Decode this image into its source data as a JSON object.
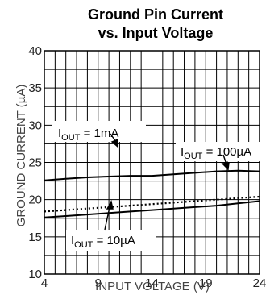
{
  "chart_data": {
    "type": "line",
    "title": "Ground Pin Current",
    "subtitle": "vs. Input Voltage",
    "xlabel": "INPUT  VOLTAGE (V)",
    "ylabel": "GROUND CURRENT (µA)",
    "xlim": [
      4,
      24
    ],
    "ylim": [
      10,
      40
    ],
    "xticks": [
      4,
      9,
      14,
      19,
      24
    ],
    "yticks": [
      10,
      15,
      20,
      25,
      30,
      35,
      40
    ],
    "grid": true,
    "series": [
      {
        "name": "I_OUT = 1mA",
        "label_main": "I",
        "label_sub": "OUT",
        "label_rest": " = 1mA",
        "style": "solid",
        "x": [
          4,
          6,
          8,
          10,
          12,
          14,
          16,
          18,
          20,
          22,
          24
        ],
        "y": [
          22.6,
          22.8,
          23.0,
          23.1,
          23.2,
          23.2,
          23.4,
          23.6,
          23.8,
          23.9,
          23.8
        ]
      },
      {
        "name": "I_OUT = 100µA",
        "label_main": "I",
        "label_sub": "OUT",
        "label_rest": " = 100µA",
        "style": "dotted",
        "x": [
          4,
          6,
          8,
          10,
          12,
          14,
          16,
          18,
          20,
          22,
          24
        ],
        "y": [
          18.4,
          18.6,
          18.8,
          19.0,
          19.2,
          19.4,
          19.6,
          19.8,
          20.0,
          20.2,
          20.4
        ]
      },
      {
        "name": "I_OUT = 10µA",
        "label_main": "I",
        "label_sub": "OUT",
        "label_rest": " = 10µA",
        "style": "solid",
        "x": [
          4,
          6,
          8,
          10,
          12,
          14,
          16,
          18,
          20,
          22,
          24
        ],
        "y": [
          17.6,
          17.8,
          18.0,
          18.2,
          18.4,
          18.6,
          18.8,
          19.0,
          19.2,
          19.5,
          19.8
        ]
      }
    ]
  }
}
